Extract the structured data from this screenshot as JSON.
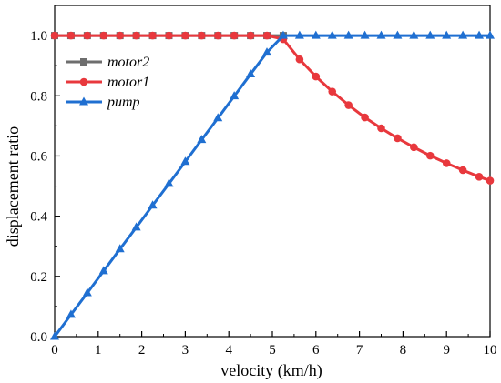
{
  "chart_data": {
    "type": "line",
    "xlabel": "velocity (km/h)",
    "ylabel": "displacement ratio",
    "xlim": [
      0,
      10
    ],
    "ylim": [
      0,
      1.1
    ],
    "xticks": [
      "0",
      "1",
      "2",
      "3",
      "4",
      "5",
      "6",
      "7",
      "8",
      "9",
      "10"
    ],
    "yticks": [
      "0.0",
      "0.2",
      "0.4",
      "0.6",
      "0.8",
      "1.0"
    ],
    "legend_position": "top-left",
    "grid": false,
    "series": [
      {
        "name": "motor2",
        "color": "#6e6e6e",
        "marker": "square",
        "x": [
          0,
          0.375,
          0.75,
          1.125,
          1.5,
          1.875,
          2.25,
          2.625,
          3.0,
          3.375,
          3.75,
          4.125,
          4.5,
          4.875,
          5.25
        ],
        "y": [
          1.0,
          1.0,
          1.0,
          1.0,
          1.0,
          1.0,
          1.0,
          1.0,
          1.0,
          1.0,
          1.0,
          1.0,
          1.0,
          1.0,
          1.0
        ]
      },
      {
        "name": "motor1",
        "color": "#e8383d",
        "marker": "circle",
        "x": [
          0,
          0.375,
          0.75,
          1.125,
          1.5,
          1.875,
          2.25,
          2.625,
          3.0,
          3.375,
          3.75,
          4.125,
          4.5,
          4.875,
          5.25,
          5.625,
          6.0,
          6.375,
          6.75,
          7.125,
          7.5,
          7.875,
          8.25,
          8.625,
          9.0,
          9.375,
          9.75,
          10.0
        ],
        "y": [
          1.0,
          1.0,
          1.0,
          1.0,
          1.0,
          1.0,
          1.0,
          1.0,
          1.0,
          1.0,
          1.0,
          1.0,
          1.0,
          1.0,
          0.988,
          0.921,
          0.864,
          0.814,
          0.769,
          0.728,
          0.692,
          0.659,
          0.629,
          0.601,
          0.576,
          0.553,
          0.531,
          0.518
        ]
      },
      {
        "name": "pump",
        "color": "#1f6fd1",
        "marker": "triangle",
        "x": [
          0,
          0.375,
          0.75,
          1.125,
          1.5,
          1.875,
          2.25,
          2.625,
          3.0,
          3.375,
          3.75,
          4.125,
          4.5,
          4.875,
          5.25,
          5.625,
          6.0,
          6.375,
          6.75,
          7.125,
          7.5,
          7.875,
          8.25,
          8.625,
          9.0,
          9.375,
          9.75,
          10.0
        ],
        "y": [
          0.0,
          0.073,
          0.145,
          0.218,
          0.291,
          0.363,
          0.436,
          0.508,
          0.581,
          0.654,
          0.726,
          0.799,
          0.872,
          0.944,
          1.0,
          1.0,
          1.0,
          1.0,
          1.0,
          1.0,
          1.0,
          1.0,
          1.0,
          1.0,
          1.0,
          1.0,
          1.0,
          1.0
        ]
      }
    ]
  }
}
